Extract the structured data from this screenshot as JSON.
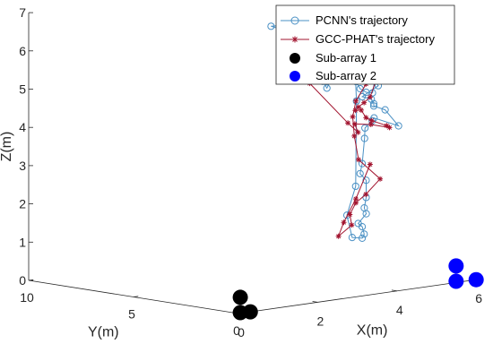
{
  "chart_data": {
    "type": "scatter",
    "projection": "3d",
    "xlabel": "X(m)",
    "ylabel": "Y(m)",
    "zlabel": "Z(m)",
    "xlim": [
      0,
      6
    ],
    "ylim": [
      0,
      10
    ],
    "zlim": [
      0,
      7
    ],
    "x_ticks": [
      "0",
      "2",
      "4",
      "6"
    ],
    "y_ticks": [
      "0",
      "5",
      "10"
    ],
    "z_ticks": [
      "0",
      "1",
      "2",
      "3",
      "4",
      "5",
      "6",
      "7"
    ],
    "grid": false,
    "legend_position": "top-right",
    "series": [
      {
        "name": "PCNN's trajectory",
        "kind": "line-circle",
        "color": "#4a90c4",
        "points": [
          [
            4.75,
            5.62,
            6.6
          ],
          [
            4.75,
            5.62,
            6.42
          ],
          [
            4.6,
            5.5,
            6.45
          ],
          [
            4.5,
            5.5,
            6.3
          ],
          [
            4.6,
            5.6,
            6.3
          ],
          [
            4.8,
            5.4,
            6.1
          ],
          [
            4.75,
            5.5,
            6.0
          ],
          [
            4.65,
            5.6,
            5.95
          ],
          [
            4.75,
            5.55,
            5.8
          ],
          [
            4.5,
            5.5,
            5.7
          ],
          [
            4.5,
            5.4,
            5.6
          ],
          [
            4.65,
            5.4,
            5.48
          ],
          [
            4.8,
            5.2,
            5.38
          ],
          [
            4.7,
            5.3,
            5.26
          ],
          [
            4.8,
            5.4,
            5.16
          ],
          [
            4.72,
            5.3,
            5.06
          ],
          [
            4.88,
            5.2,
            4.9
          ],
          [
            4.88,
            5.0,
            4.74
          ],
          [
            5.05,
            5.0,
            5.06
          ],
          [
            5.1,
            4.6,
            5.26
          ],
          [
            5.3,
            4.4,
            4.9
          ],
          [
            5.4,
            4.4,
            4.7
          ],
          [
            5.5,
            4.3,
            4.6
          ],
          [
            5.66,
            4.3,
            4.56
          ],
          [
            5.66,
            4.2,
            4.88
          ],
          [
            5.7,
            4.1,
            4.76
          ],
          [
            5.4,
            4.3,
            4.5
          ],
          [
            5.63,
            4.3,
            4.4
          ],
          [
            5.64,
            4.2,
            4.29
          ],
          [
            5.64,
            4.2,
            4.23
          ],
          [
            5.82,
            4.0,
            4.12
          ],
          [
            6.0,
            3.7,
            3.7
          ],
          [
            5.7,
            4.3,
            3.9
          ],
          [
            5.6,
            4.2,
            3.85
          ],
          [
            5.47,
            4.3,
            3.67
          ],
          [
            5.46,
            4.3,
            3.4
          ],
          [
            5.4,
            4.3,
            2.75
          ],
          [
            5.4,
            4.4,
            2.48
          ],
          [
            5.5,
            4.3,
            2.3
          ],
          [
            5.5,
            4.3,
            1.85
          ],
          [
            5.4,
            4.2,
            1.6
          ],
          [
            5.45,
            4.2,
            1.44
          ],
          [
            5.3,
            4.3,
            1.2
          ],
          [
            5.4,
            4.3,
            1.1
          ],
          [
            5.45,
            4.3,
            0.9
          ],
          [
            5.4,
            4.3,
            0.8
          ],
          [
            5.2,
            4.4,
            0.84
          ],
          [
            5.2,
            4.65,
            1.4
          ],
          [
            5.5,
            4.8,
            2.1
          ],
          [
            5.6,
            4.95,
            4.3
          ],
          [
            5.72,
            5.3,
            5.75
          ],
          [
            5.2,
            5.7,
            5.95
          ],
          [
            4.55,
            5.85,
            6.38
          ],
          [
            4.0,
            6.0,
            6.4
          ],
          [
            4.4,
            5.8,
            6.2
          ],
          [
            4.5,
            5.8,
            6.1
          ],
          [
            4.35,
            5.85,
            5.9
          ],
          [
            4.6,
            5.75,
            5.7
          ],
          [
            4.8,
            5.55,
            5.6
          ],
          [
            4.9,
            5.35,
            5.2
          ],
          [
            4.8,
            5.3,
            5.0
          ]
        ]
      },
      {
        "name": "GCC-PHAT's trajectory",
        "kind": "line-star",
        "color": "#a2142f",
        "points": [
          [
            5.32,
            4.7,
            5.1
          ],
          [
            5.4,
            4.4,
            4.89
          ],
          [
            5.7,
            4.2,
            4.9
          ],
          [
            5.6,
            4.3,
            4.46
          ],
          [
            5.5,
            4.4,
            4.32
          ],
          [
            5.41,
            4.5,
            4.21
          ],
          [
            5.28,
            4.4,
            4.15
          ],
          [
            5.48,
            4.5,
            4.12
          ],
          [
            5.55,
            4.4,
            3.92
          ],
          [
            5.64,
            4.3,
            3.84
          ],
          [
            5.86,
            4.0,
            3.7
          ],
          [
            5.93,
            4.0,
            3.64
          ],
          [
            5.62,
            4.3,
            3.74
          ],
          [
            5.32,
            4.5,
            3.78
          ],
          [
            5.4,
            4.5,
            3.55
          ],
          [
            5.25,
            4.7,
            3.8
          ],
          [
            4.66,
            5.4,
            4.86
          ],
          [
            4.8,
            5.3,
            5.04
          ],
          [
            5.1,
            5.0,
            5.04
          ],
          [
            5.3,
            4.7,
            5.4
          ],
          [
            5.43,
            4.6,
            5.23
          ],
          [
            5.7,
            4.3,
            5.12
          ],
          [
            5.55,
            4.4,
            4.8
          ],
          [
            5.4,
            4.6,
            4.36
          ],
          [
            5.32,
            4.6,
            3.96
          ],
          [
            5.36,
            4.6,
            3.45
          ],
          [
            5.52,
            4.7,
            2.8
          ],
          [
            5.8,
            4.2,
            2.3
          ],
          [
            5.6,
            4.5,
            1.9
          ],
          [
            5.4,
            4.6,
            1.7
          ],
          [
            5.3,
            4.7,
            1.4
          ],
          [
            5.4,
            4.8,
            1.1
          ],
          [
            5.12,
            4.9,
            0.84
          ],
          [
            5.2,
            4.8,
            1.2
          ],
          [
            5.4,
            4.6,
            1.8
          ],
          [
            5.6,
            4.3,
            2.7
          ]
        ]
      },
      {
        "name": "Sub-array 1",
        "kind": "filled-circle",
        "color": "#000000",
        "points": [
          [
            0.1,
            0.1,
            0.4
          ],
          [
            0.1,
            0.1,
            0.0
          ],
          [
            0.3,
            0.0,
            0.0
          ]
        ]
      },
      {
        "name": "Sub-array 2",
        "kind": "filled-circle",
        "color": "#0000ff",
        "points": [
          [
            5.6,
            0.2,
            0.4
          ],
          [
            5.6,
            0.2,
            0.0
          ],
          [
            6.0,
            0.0,
            0.0
          ]
        ]
      }
    ]
  }
}
